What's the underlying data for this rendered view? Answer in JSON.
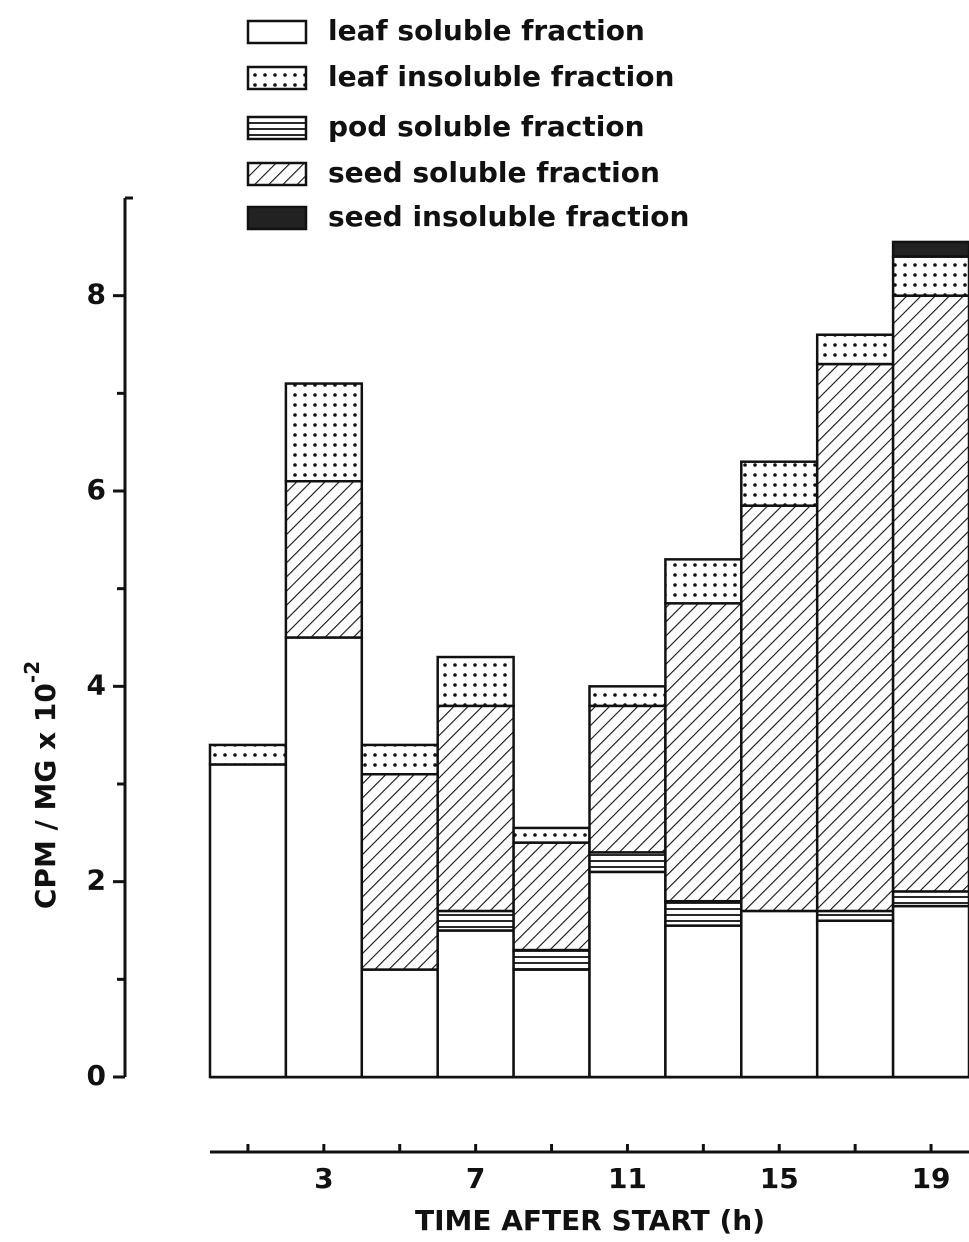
{
  "chart_data": {
    "type": "stacked_bar",
    "categories": [
      null,
      3,
      null,
      7,
      null,
      11,
      null,
      15,
      null,
      19
    ],
    "series": [
      {
        "name": "leaf soluble fraction",
        "values": [
          3.2,
          4.5,
          1.1,
          1.5,
          1.1,
          2.1,
          1.55,
          1.7,
          1.6,
          1.75
        ]
      },
      {
        "name": "leaf insoluble fraction",
        "values": [
          0.2,
          1.0,
          0.3,
          0.5,
          0.15,
          0.2,
          0.45,
          0.45,
          0.3,
          0.4
        ]
      },
      {
        "name": "pod soluble fraction",
        "values": [
          0,
          0,
          0,
          0.2,
          0.2,
          0.2,
          0.25,
          0,
          0.1,
          0.15
        ]
      },
      {
        "name": "seed soluble fraction",
        "values": [
          0,
          1.6,
          2.0,
          2.1,
          1.1,
          1.5,
          3.05,
          4.15,
          5.6,
          6.1
        ]
      },
      {
        "name": "seed insoluble fraction",
        "values": [
          0,
          0,
          0,
          0,
          0,
          0,
          0,
          0,
          0,
          0.15
        ]
      }
    ],
    "x_label": "TIME AFTER START  (h)",
    "y_label": "CPM / MG x 10",
    "y_label_exponent": "-2",
    "ylim": [
      0,
      9
    ],
    "yticks": [
      0,
      2,
      4,
      6,
      8
    ],
    "legend": "top"
  }
}
